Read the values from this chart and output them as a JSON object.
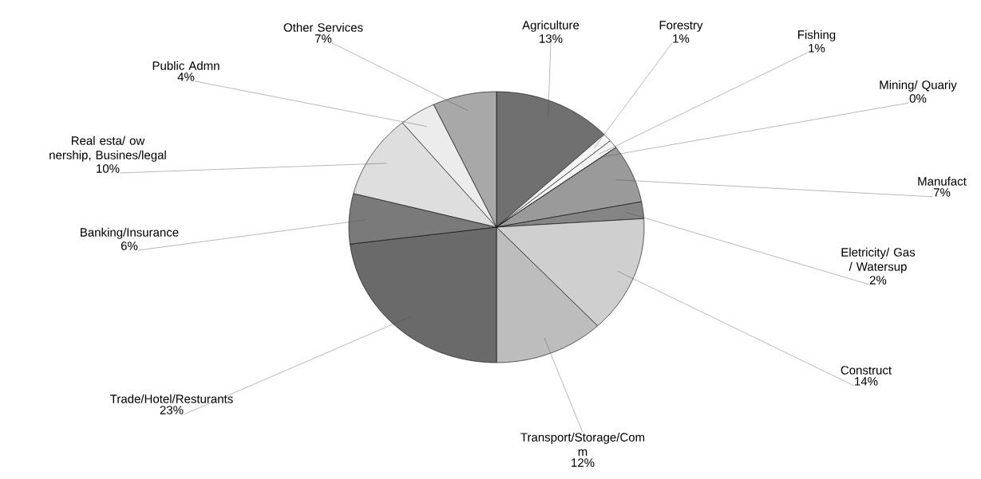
{
  "chart_data": {
    "type": "pie",
    "categories": [
      "Agriculture",
      "Forestry",
      "Fishing",
      "Mining/ Quariy",
      "Manufact",
      "Eletricity/ Gas / Watersup",
      "Construct",
      "Transport/Storage/Com m",
      "Trade/Hotel/Resturants",
      "Banking/Insurance",
      "Real esta/ ow nership, Busines/legal",
      "Public Admn",
      "Other Services"
    ],
    "values": [
      13,
      1,
      1,
      0,
      7,
      2,
      14,
      12,
      23,
      6,
      10,
      4,
      7
    ],
    "colors": [
      "#707070",
      "#f4f4f4",
      "#f4f4f4",
      "#e0e0e0",
      "#9a9a9a",
      "#858585",
      "#cfcfcf",
      "#bdbdbd",
      "#6a6a6a",
      "#7a7a7a",
      "#dedede",
      "#ececec",
      "#a8a8a8"
    ],
    "value_labels": [
      "13%",
      "1%",
      "1%",
      "0%",
      "7%",
      "2%",
      "14%",
      "12%",
      "23%",
      "6%",
      "10%",
      "4%",
      "7%"
    ]
  }
}
